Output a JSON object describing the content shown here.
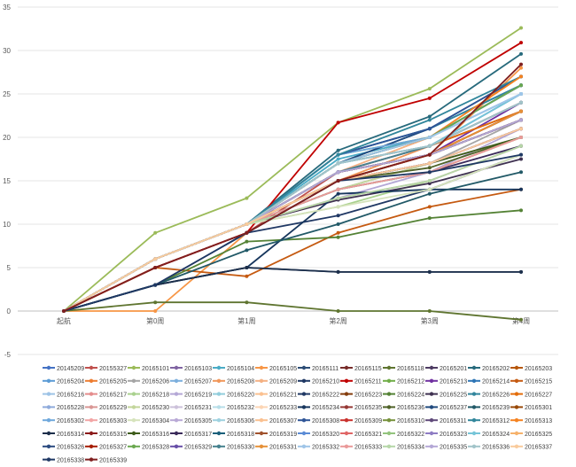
{
  "chart_data": {
    "type": "line",
    "title": "",
    "xlabel": "",
    "ylabel": "",
    "categories": [
      "起航",
      "第0周",
      "第1周",
      "第2周",
      "第3周",
      "第4周"
    ],
    "ylim": [
      -5,
      35
    ],
    "yticks": [
      -5,
      0,
      5,
      10,
      15,
      20,
      25,
      30,
      35
    ],
    "grid": true,
    "legend": "bottom",
    "series": [
      {
        "name": "20145209",
        "color": "#4472c4",
        "values": [
          0,
          6,
          10,
          18,
          21,
          26
        ]
      },
      {
        "name": "20155327",
        "color": "#c0504d",
        "values": [
          0,
          5,
          9,
          16,
          18,
          22
        ]
      },
      {
        "name": "20165101",
        "color": "#9bbb59",
        "values": [
          0,
          9,
          13,
          21.7,
          25.6,
          32.6
        ]
      },
      {
        "name": "20165103",
        "color": "#8064a2",
        "values": [
          0,
          6,
          10,
          17,
          19,
          23
        ]
      },
      {
        "name": "20165104",
        "color": "#4bacc6",
        "values": [
          0,
          6,
          10,
          17.5,
          20,
          25
        ]
      },
      {
        "name": "20165105",
        "color": "#f79646",
        "values": [
          0,
          0,
          9,
          15,
          18,
          28
        ]
      },
      {
        "name": "20165111",
        "color": "#2c4d75",
        "values": [
          0,
          3,
          5,
          4.5,
          4.5,
          4.5
        ]
      },
      {
        "name": "20165115",
        "color": "#772c2a",
        "values": [
          0,
          5,
          9,
          15,
          17,
          21
        ]
      },
      {
        "name": "20165118",
        "color": "#5f7530",
        "values": [
          0,
          1,
          1,
          0,
          0,
          -1
        ]
      },
      {
        "name": "20165201",
        "color": "#4d3b62",
        "values": [
          0,
          6,
          10,
          16,
          18,
          23
        ]
      },
      {
        "name": "20165202",
        "color": "#276a7c",
        "values": [
          0,
          6,
          10,
          18.5,
          22.4,
          29.6
        ]
      },
      {
        "name": "20165203",
        "color": "#b65708",
        "values": [
          0,
          6,
          10,
          15,
          17,
          21
        ]
      },
      {
        "name": "20165204",
        "color": "#5b9bd5",
        "values": [
          0,
          6,
          10,
          17,
          21,
          26
        ]
      },
      {
        "name": "20165205",
        "color": "#ed7d31",
        "values": [
          0,
          6,
          10,
          16,
          19,
          24
        ]
      },
      {
        "name": "20165206",
        "color": "#a5a5a5",
        "values": [
          0,
          6,
          10,
          14,
          17,
          22
        ]
      },
      {
        "name": "20165207",
        "color": "#7cafdd",
        "values": [
          0,
          6,
          10,
          17,
          20,
          25
        ]
      },
      {
        "name": "20165208",
        "color": "#f1975a",
        "values": [
          0,
          6,
          10,
          15,
          19,
          24
        ]
      },
      {
        "name": "20165209",
        "color": "#f4b183",
        "values": [
          0,
          6,
          10,
          16,
          20,
          26
        ]
      },
      {
        "name": "20165210",
        "color": "#1f3864",
        "values": [
          0,
          6,
          10,
          15,
          18,
          22
        ]
      },
      {
        "name": "20165211",
        "color": "#c00000",
        "values": [
          0,
          5,
          9,
          21.7,
          24.5,
          30.9
        ]
      },
      {
        "name": "20165212",
        "color": "#70ad47",
        "values": [
          0,
          6,
          10,
          18,
          20,
          26
        ]
      },
      {
        "name": "20165213",
        "color": "#7030a0",
        "values": [
          0,
          6,
          10,
          16,
          18,
          24
        ]
      },
      {
        "name": "20165214",
        "color": "#2e75b6",
        "values": [
          0,
          6,
          10,
          17,
          19,
          25
        ]
      },
      {
        "name": "20165215",
        "color": "#c55a11",
        "values": [
          0,
          5,
          4,
          9,
          12,
          14
        ]
      },
      {
        "name": "20165216",
        "color": "#9dc3e6",
        "values": [
          0,
          6,
          10,
          17,
          20,
          25
        ]
      },
      {
        "name": "20165217",
        "color": "#e48c8c",
        "values": [
          0,
          6,
          10,
          14,
          16,
          20
        ]
      },
      {
        "name": "20165218",
        "color": "#a9d18e",
        "values": [
          0,
          6,
          10,
          12,
          15,
          19
        ]
      },
      {
        "name": "20165219",
        "color": "#b4a7d6",
        "values": [
          0,
          6,
          10,
          13,
          16,
          21
        ]
      },
      {
        "name": "20165220",
        "color": "#92cddc",
        "values": [
          0,
          6,
          10,
          17,
          19,
          24
        ]
      },
      {
        "name": "20165221",
        "color": "#fbc08f",
        "values": [
          0,
          6,
          10,
          15,
          18,
          22
        ]
      },
      {
        "name": "20165222",
        "color": "#203864",
        "values": [
          0,
          3,
          9,
          11,
          14,
          18
        ]
      },
      {
        "name": "20165223",
        "color": "#843c0c",
        "values": [
          0,
          6,
          10,
          16,
          18,
          23
        ]
      },
      {
        "name": "20165224",
        "color": "#548235",
        "values": [
          0,
          3,
          8,
          8.5,
          10.7,
          11.6
        ]
      },
      {
        "name": "20165225",
        "color": "#3f3151",
        "values": [
          0,
          6,
          10,
          12.8,
          14.7,
          17.5
        ]
      },
      {
        "name": "20165226",
        "color": "#31859c",
        "values": [
          0,
          6,
          10,
          18,
          21,
          26
        ]
      },
      {
        "name": "20165227",
        "color": "#e36c09",
        "values": [
          0,
          6,
          10,
          16,
          19,
          23
        ]
      },
      {
        "name": "20165228",
        "color": "#8eaadb",
        "values": [
          0,
          6,
          10,
          16,
          18,
          22
        ]
      },
      {
        "name": "20165229",
        "color": "#d99694",
        "values": [
          0,
          6,
          10,
          13,
          15,
          19
        ]
      },
      {
        "name": "20165230",
        "color": "#c3d69b",
        "values": [
          0,
          6,
          10,
          14,
          17,
          21
        ]
      },
      {
        "name": "20165231",
        "color": "#ccc1da",
        "values": [
          0,
          6,
          10,
          15,
          17,
          20
        ]
      },
      {
        "name": "20165232",
        "color": "#b7dee8",
        "values": [
          0,
          6,
          10,
          16,
          18,
          22
        ]
      },
      {
        "name": "20165233",
        "color": "#fcd5b4",
        "values": [
          0,
          6,
          10,
          15,
          17,
          21
        ]
      },
      {
        "name": "20165234",
        "color": "#17365d",
        "values": [
          0,
          3,
          5,
          13.5,
          14,
          14
        ]
      },
      {
        "name": "20165235",
        "color": "#953734",
        "values": [
          0,
          6,
          10,
          15,
          18,
          22
        ]
      },
      {
        "name": "20165236",
        "color": "#4f6228",
        "values": [
          0,
          6,
          10,
          15,
          16.5,
          20
        ]
      },
      {
        "name": "20165237",
        "color": "#1f497d",
        "values": [
          0,
          6,
          10,
          17,
          21,
          27
        ]
      },
      {
        "name": "20165239",
        "color": "#215967",
        "values": [
          0,
          3,
          7,
          10,
          13.5,
          16
        ]
      },
      {
        "name": "20165301",
        "color": "#984807",
        "values": [
          0,
          6,
          10,
          15,
          18,
          23
        ]
      },
      {
        "name": "20165302",
        "color": "#6fa8dc",
        "values": [
          0,
          6,
          10,
          18,
          20,
          26
        ]
      },
      {
        "name": "20165303",
        "color": "#f2a5a5",
        "values": [
          0,
          6,
          10,
          15,
          17,
          21
        ]
      },
      {
        "name": "20165304",
        "color": "#d6e3bc",
        "values": [
          0,
          6,
          10,
          12,
          14,
          18
        ]
      },
      {
        "name": "20165305",
        "color": "#b9a9d6",
        "values": [
          0,
          6,
          10,
          16,
          19,
          24
        ]
      },
      {
        "name": "20165306",
        "color": "#9fd2e0",
        "values": [
          0,
          6,
          10,
          17,
          20,
          25
        ]
      },
      {
        "name": "20165307",
        "color": "#fac090",
        "values": [
          0,
          6,
          10,
          16,
          19,
          24
        ]
      },
      {
        "name": "20165308",
        "color": "#2f5597",
        "values": [
          0,
          6,
          10,
          18,
          21,
          27
        ]
      },
      {
        "name": "20165309",
        "color": "#c9302c",
        "values": [
          0,
          6,
          10,
          16,
          18,
          22
        ]
      },
      {
        "name": "20165310",
        "color": "#76923c",
        "values": [
          0,
          6,
          10,
          17,
          20,
          26
        ]
      },
      {
        "name": "20165311",
        "color": "#5f497a",
        "values": [
          0,
          6,
          10,
          15,
          17,
          21
        ]
      },
      {
        "name": "20165312",
        "color": "#31869b",
        "values": [
          0,
          6,
          10,
          18,
          22,
          27
        ]
      },
      {
        "name": "20165313",
        "color": "#f58220",
        "values": [
          0,
          6,
          10,
          17,
          20,
          27
        ]
      },
      {
        "name": "20165314",
        "color": "#1c2e4a",
        "values": [
          0,
          3,
          5,
          4.5,
          4.5,
          4.5
        ]
      },
      {
        "name": "20165315",
        "color": "#8b1a1a",
        "values": [
          0,
          6,
          10,
          16,
          18,
          22
        ]
      },
      {
        "name": "20165316",
        "color": "#3d5c1a",
        "values": [
          0,
          6,
          10,
          15,
          17,
          20
        ]
      },
      {
        "name": "20165317",
        "color": "#3a2a5a",
        "values": [
          0,
          6,
          10,
          14,
          16,
          19
        ]
      },
      {
        "name": "20165318",
        "color": "#1a5f7a",
        "values": [
          0,
          6,
          10,
          17,
          20,
          26
        ]
      },
      {
        "name": "20165319",
        "color": "#a0522d",
        "values": [
          0,
          6,
          10,
          15,
          18,
          22
        ]
      },
      {
        "name": "20165320",
        "color": "#5b8bd5",
        "values": [
          0,
          6,
          10,
          17,
          20,
          26
        ]
      },
      {
        "name": "20165321",
        "color": "#e06666",
        "values": [
          0,
          6,
          10,
          15,
          17,
          21
        ]
      },
      {
        "name": "20165322",
        "color": "#93c47d",
        "values": [
          0,
          6,
          10,
          14,
          16,
          20
        ]
      },
      {
        "name": "20165323",
        "color": "#8e7cc3",
        "values": [
          0,
          6,
          10,
          16,
          19,
          24
        ]
      },
      {
        "name": "20165324",
        "color": "#76c5d8",
        "values": [
          0,
          6,
          10,
          17,
          19,
          25
        ]
      },
      {
        "name": "20165325",
        "color": "#f6b26b",
        "values": [
          0,
          6,
          10,
          15,
          18,
          23
        ]
      },
      {
        "name": "20165326",
        "color": "#2a4a7f",
        "values": [
          0,
          6,
          10,
          16,
          18,
          22
        ]
      },
      {
        "name": "20165327",
        "color": "#a61c00",
        "values": [
          0,
          6,
          10,
          15,
          18,
          23
        ]
      },
      {
        "name": "20165328",
        "color": "#6aa84f",
        "values": [
          0,
          6,
          10,
          17,
          20,
          26
        ]
      },
      {
        "name": "20165329",
        "color": "#674ea7",
        "values": [
          0,
          6,
          10,
          15,
          17,
          21
        ]
      },
      {
        "name": "20165330",
        "color": "#45818e",
        "values": [
          0,
          6,
          10,
          16,
          19,
          24
        ]
      },
      {
        "name": "20165331",
        "color": "#e69138",
        "values": [
          0,
          6,
          10,
          15,
          18,
          23
        ]
      },
      {
        "name": "20165332",
        "color": "#9fc5e8",
        "values": [
          0,
          6,
          10,
          17,
          20,
          25
        ]
      },
      {
        "name": "20165333",
        "color": "#ea9999",
        "values": [
          0,
          6,
          10,
          14,
          16,
          20
        ]
      },
      {
        "name": "20165334",
        "color": "#b6d7a8",
        "values": [
          0,
          6,
          10,
          13,
          15,
          19
        ]
      },
      {
        "name": "20165335",
        "color": "#b4a7d6",
        "values": [
          0,
          6,
          10,
          16,
          18,
          22
        ]
      },
      {
        "name": "20165336",
        "color": "#a2c4c9",
        "values": [
          0,
          6,
          10,
          17,
          19,
          24
        ]
      },
      {
        "name": "20165337",
        "color": "#f9cb9c",
        "values": [
          0,
          6,
          10,
          15,
          17,
          21
        ]
      },
      {
        "name": "20165338",
        "color": "#1f3864",
        "values": [
          0,
          3,
          9,
          15,
          16,
          18
        ]
      },
      {
        "name": "20165339",
        "color": "#7f1f1f",
        "values": [
          0,
          5,
          9,
          15,
          18,
          28.4
        ]
      }
    ]
  }
}
